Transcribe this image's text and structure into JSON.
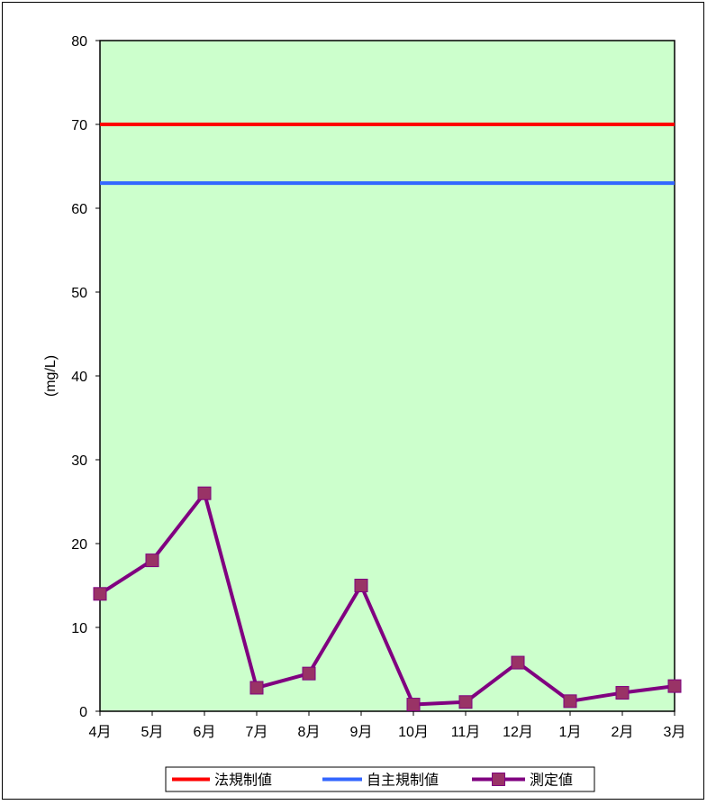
{
  "chart_data": {
    "type": "line",
    "title": "",
    "xlabel": "",
    "ylabel": "(mg/L)",
    "categories": [
      "4月",
      "5月",
      "6月",
      "7月",
      "8月",
      "9月",
      "10月",
      "11月",
      "12月",
      "1月",
      "2月",
      "3月"
    ],
    "ylim": [
      0,
      80
    ],
    "yticks": [
      0,
      10,
      20,
      30,
      40,
      50,
      60,
      70,
      80
    ],
    "grid": false,
    "plot_background": "#ccffcc",
    "legend_position": "bottom",
    "series": [
      {
        "name": "法規制値",
        "color": "#ff0000",
        "marker": "none",
        "values": [
          70,
          70,
          70,
          70,
          70,
          70,
          70,
          70,
          70,
          70,
          70,
          70
        ]
      },
      {
        "name": "自主規制値",
        "color": "#3366ff",
        "marker": "none",
        "values": [
          63,
          63,
          63,
          63,
          63,
          63,
          63,
          63,
          63,
          63,
          63,
          63
        ]
      },
      {
        "name": "測定値",
        "color": "#800080",
        "marker": "square",
        "marker_color": "#993366",
        "values": [
          14,
          18,
          26,
          2.8,
          4.5,
          15,
          0.8,
          1.1,
          5.8,
          1.2,
          2.2,
          3.0
        ]
      }
    ]
  }
}
